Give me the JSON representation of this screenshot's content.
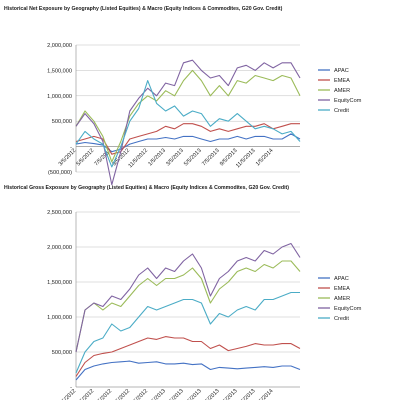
{
  "chart_data": [
    {
      "type": "line",
      "title": "Historical Net Exposure by Geography (Listed Equities) & Macro (Equity Indices & Commodites, G20 Gov. Credit)",
      "xlabel": "",
      "ylabel": "",
      "ylim": [
        -500000,
        2000000
      ],
      "yticks": [
        -500000,
        0,
        500000,
        1000000,
        1500000,
        2000000
      ],
      "ytick_labels": [
        "(500,000)",
        "-",
        "500,000",
        "1,000,000",
        "1,500,000",
        "2,000,000"
      ],
      "x_tick_labels": [
        "3/5/2012",
        "5/5/2012",
        "7/5/2012",
        "9/5/2012",
        "11/5/2012",
        "1/5/2013",
        "3/5/2013",
        "5/5/2013",
        "7/5/2013",
        "9/5/2013",
        "11/5/2013",
        "1/5/2014"
      ],
      "x": [
        0,
        0.5,
        1,
        1.5,
        2,
        2.5,
        3,
        3.5,
        4,
        4.5,
        5,
        5.5,
        6,
        6.5,
        7,
        7.5,
        8,
        8.5,
        9,
        9.5,
        10,
        10.5,
        11,
        11.5,
        12,
        12.5
      ],
      "grid": true,
      "legend": "right",
      "series": [
        {
          "name": "APAC",
          "color": "#4472c4",
          "values": [
            50000,
            80000,
            60000,
            30000,
            -100000,
            -50000,
            50000,
            100000,
            150000,
            150000,
            180000,
            150000,
            200000,
            200000,
            150000,
            100000,
            150000,
            150000,
            200000,
            150000,
            200000,
            200000,
            150000,
            150000,
            250000,
            150000
          ]
        },
        {
          "name": "EMEA",
          "color": "#c0504d",
          "values": [
            100000,
            150000,
            200000,
            150000,
            -150000,
            -100000,
            150000,
            200000,
            250000,
            300000,
            400000,
            350000,
            450000,
            450000,
            400000,
            300000,
            350000,
            300000,
            350000,
            400000,
            400000,
            450000,
            350000,
            400000,
            450000,
            450000
          ]
        },
        {
          "name": "AMER",
          "color": "#9bbb59",
          "values": [
            400000,
            700000,
            500000,
            200000,
            -300000,
            100000,
            600000,
            850000,
            1000000,
            900000,
            1100000,
            1000000,
            1300000,
            1500000,
            1300000,
            1000000,
            1200000,
            1000000,
            1300000,
            1250000,
            1400000,
            1350000,
            1300000,
            1400000,
            1350000,
            1000000
          ]
        },
        {
          "name": "EquityCom",
          "color": "#8064a2",
          "values": [
            400000,
            650000,
            450000,
            100000,
            -750000,
            -100000,
            700000,
            950000,
            1150000,
            1000000,
            1250000,
            1200000,
            1650000,
            1700000,
            1500000,
            1350000,
            1400000,
            1200000,
            1550000,
            1600000,
            1500000,
            1650000,
            1550000,
            1650000,
            1650000,
            1350000
          ]
        },
        {
          "name": "Credit",
          "color": "#4bacc6",
          "values": [
            50000,
            300000,
            150000,
            50000,
            -400000,
            0,
            500000,
            750000,
            1300000,
            850000,
            700000,
            800000,
            600000,
            700000,
            650000,
            400000,
            550000,
            500000,
            650000,
            500000,
            350000,
            400000,
            350000,
            250000,
            300000,
            100000
          ]
        }
      ]
    },
    {
      "type": "line",
      "title": "Historical Gross Exposure by Geography (Listed Equities) & Macro (Equity Indices & Commodites, G20 Gov. Credit)",
      "xlabel": "",
      "ylabel": "",
      "ylim": [
        0,
        2500000
      ],
      "yticks": [
        0,
        500000,
        1000000,
        1500000,
        2000000,
        2500000
      ],
      "ytick_labels": [
        "-",
        "500,000",
        "1,000,000",
        "1,500,000",
        "2,000,000",
        "2,500,000"
      ],
      "x_tick_labels": [
        "3/5/2012",
        "5/5/2012",
        "7/5/2012",
        "9/5/2012",
        "11/5/2012",
        "1/5/2013",
        "3/5/2013",
        "5/5/2013",
        "7/5/2013",
        "9/5/2013",
        "11/5/2013",
        "1/5/2014"
      ],
      "x": [
        0,
        0.5,
        1,
        1.5,
        2,
        2.5,
        3,
        3.5,
        4,
        4.5,
        5,
        5.5,
        6,
        6.5,
        7,
        7.5,
        8,
        8.5,
        9,
        9.5,
        10,
        10.5,
        11,
        11.5,
        12,
        12.5
      ],
      "grid": true,
      "legend": "right",
      "series": [
        {
          "name": "APAC",
          "color": "#4472c4",
          "values": [
            100000,
            250000,
            300000,
            330000,
            350000,
            360000,
            370000,
            340000,
            350000,
            360000,
            330000,
            330000,
            340000,
            320000,
            330000,
            250000,
            280000,
            270000,
            260000,
            270000,
            280000,
            290000,
            280000,
            300000,
            300000,
            250000
          ]
        },
        {
          "name": "EMEA",
          "color": "#c0504d",
          "values": [
            150000,
            350000,
            450000,
            480000,
            500000,
            550000,
            600000,
            650000,
            700000,
            680000,
            720000,
            700000,
            700000,
            650000,
            650000,
            550000,
            600000,
            520000,
            550000,
            580000,
            620000,
            600000,
            600000,
            620000,
            620000,
            550000
          ]
        },
        {
          "name": "AMER",
          "color": "#9bbb59",
          "values": [
            500000,
            1100000,
            1200000,
            1100000,
            1200000,
            1150000,
            1300000,
            1450000,
            1550000,
            1450000,
            1550000,
            1550000,
            1600000,
            1700000,
            1550000,
            1200000,
            1400000,
            1500000,
            1650000,
            1700000,
            1650000,
            1750000,
            1700000,
            1800000,
            1800000,
            1650000
          ]
        },
        {
          "name": "EquityCom",
          "color": "#8064a2",
          "values": [
            500000,
            1100000,
            1200000,
            1150000,
            1300000,
            1250000,
            1400000,
            1600000,
            1700000,
            1550000,
            1700000,
            1650000,
            1800000,
            1900000,
            1700000,
            1300000,
            1550000,
            1650000,
            1800000,
            1850000,
            1800000,
            1950000,
            1900000,
            2000000,
            2050000,
            1850000
          ]
        },
        {
          "name": "Credit",
          "color": "#4bacc6",
          "values": [
            200000,
            500000,
            650000,
            700000,
            900000,
            800000,
            850000,
            1000000,
            1150000,
            1100000,
            1150000,
            1200000,
            1250000,
            1250000,
            1200000,
            900000,
            1050000,
            1000000,
            1100000,
            1150000,
            1100000,
            1250000,
            1250000,
            1300000,
            1350000,
            1350000
          ]
        }
      ]
    }
  ]
}
